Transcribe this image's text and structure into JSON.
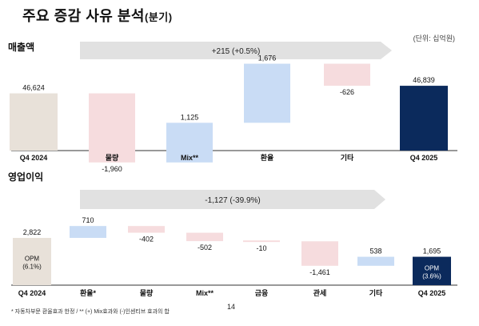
{
  "page": {
    "title_main": "주요 증감 사유 분석",
    "title_sub": "(분기)",
    "unit": "(단위: 십억원)",
    "footnote": "* 자동차부문 환율효과 한정 / ** (+) Mix효과와 (-)인센티브 효과의 합",
    "page_number": "14"
  },
  "colors": {
    "start_bar": "#e8e1d9",
    "end_bar": "#0b2a5c",
    "positive": "#c9dcf5",
    "negative": "#f6dcde",
    "arrow": "#e1e1e1",
    "axis": "#333333"
  },
  "chart_data": [
    {
      "type": "bar",
      "subtype": "waterfall",
      "title": "매출액",
      "annotation": "+215 (+0.5%)",
      "categories": [
        "Q4 2024",
        "물량",
        "Mix**",
        "환율",
        "기타",
        "Q4 2025"
      ],
      "values": [
        46624,
        -1960,
        1125,
        1676,
        -626,
        46839
      ],
      "labels": [
        "46,624",
        "-1,960",
        "1,125",
        "1,676",
        "-626",
        "46,839"
      ],
      "kinds": [
        "total",
        "delta",
        "delta",
        "delta",
        "delta",
        "total"
      ]
    },
    {
      "type": "bar",
      "subtype": "waterfall",
      "title": "영업이익",
      "annotation": "-1,127 (-39.9%)",
      "categories": [
        "Q4 2024",
        "환율*",
        "물량",
        "Mix**",
        "금융",
        "관세",
        "기타",
        "Q4 2025"
      ],
      "values": [
        2822,
        710,
        -402,
        -502,
        -10,
        -1461,
        538,
        1695
      ],
      "labels": [
        "2,822",
        "710",
        "-402",
        "-502",
        "-10",
        "-1,461",
        "538",
        "1,695"
      ],
      "kinds": [
        "total",
        "delta",
        "delta",
        "delta",
        "delta",
        "delta",
        "delta",
        "total"
      ],
      "bar_notes": [
        {
          "index": 0,
          "line1": "OPM",
          "line2": "(6.1%)"
        },
        {
          "index": 7,
          "line1": "OPM",
          "line2": "(3.6%)"
        }
      ]
    }
  ]
}
